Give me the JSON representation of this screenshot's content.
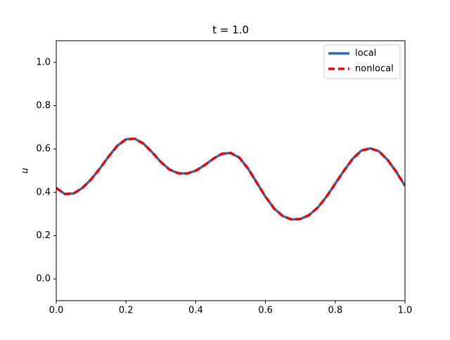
{
  "chart_data": {
    "type": "line",
    "title": "t = 1.0",
    "y_label": "u",
    "x": [
      0,
      0.025,
      0.05,
      0.075,
      0.1,
      0.125,
      0.15,
      0.175,
      0.2,
      0.225,
      0.25,
      0.275,
      0.3,
      0.325,
      0.35,
      0.375,
      0.4,
      0.425,
      0.45,
      0.475,
      0.5,
      0.525,
      0.55,
      0.575,
      0.6,
      0.625,
      0.65,
      0.675,
      0.7,
      0.725,
      0.75,
      0.775,
      0.8,
      0.825,
      0.85,
      0.875,
      0.9,
      0.925,
      0.95,
      0.975,
      1.0
    ],
    "series": [
      {
        "name": "local",
        "color": "#1f77b4",
        "dash": false,
        "values": [
          0.42,
          0.392,
          0.395,
          0.42,
          0.46,
          0.51,
          0.565,
          0.615,
          0.645,
          0.648,
          0.625,
          0.585,
          0.54,
          0.505,
          0.488,
          0.487,
          0.5,
          0.525,
          0.555,
          0.578,
          0.582,
          0.56,
          0.51,
          0.445,
          0.38,
          0.325,
          0.29,
          0.275,
          0.277,
          0.295,
          0.33,
          0.38,
          0.44,
          0.5,
          0.555,
          0.593,
          0.603,
          0.59,
          0.55,
          0.495,
          0.43
        ]
      },
      {
        "name": "nonlocal",
        "color": "#ff0000",
        "dash": true,
        "values": [
          0.42,
          0.392,
          0.395,
          0.42,
          0.46,
          0.51,
          0.565,
          0.615,
          0.645,
          0.648,
          0.625,
          0.585,
          0.54,
          0.505,
          0.488,
          0.487,
          0.5,
          0.525,
          0.555,
          0.578,
          0.582,
          0.56,
          0.51,
          0.445,
          0.38,
          0.325,
          0.29,
          0.275,
          0.277,
          0.295,
          0.33,
          0.38,
          0.44,
          0.5,
          0.555,
          0.593,
          0.603,
          0.59,
          0.55,
          0.495,
          0.43
        ]
      }
    ],
    "xlim": [
      0,
      1.0
    ],
    "ylim": [
      -0.1,
      1.1
    ],
    "xticks": [
      {
        "value": 0,
        "label": "0.0"
      },
      0.2,
      0.4,
      0.6,
      0.8,
      {
        "value": 1,
        "label": "1.0"
      }
    ],
    "yticks": [
      {
        "value": 0,
        "label": "0.0"
      },
      0.2,
      0.4,
      0.6,
      0.8,
      {
        "value": 1,
        "label": "1.0"
      }
    ],
    "legend": "upper right"
  }
}
